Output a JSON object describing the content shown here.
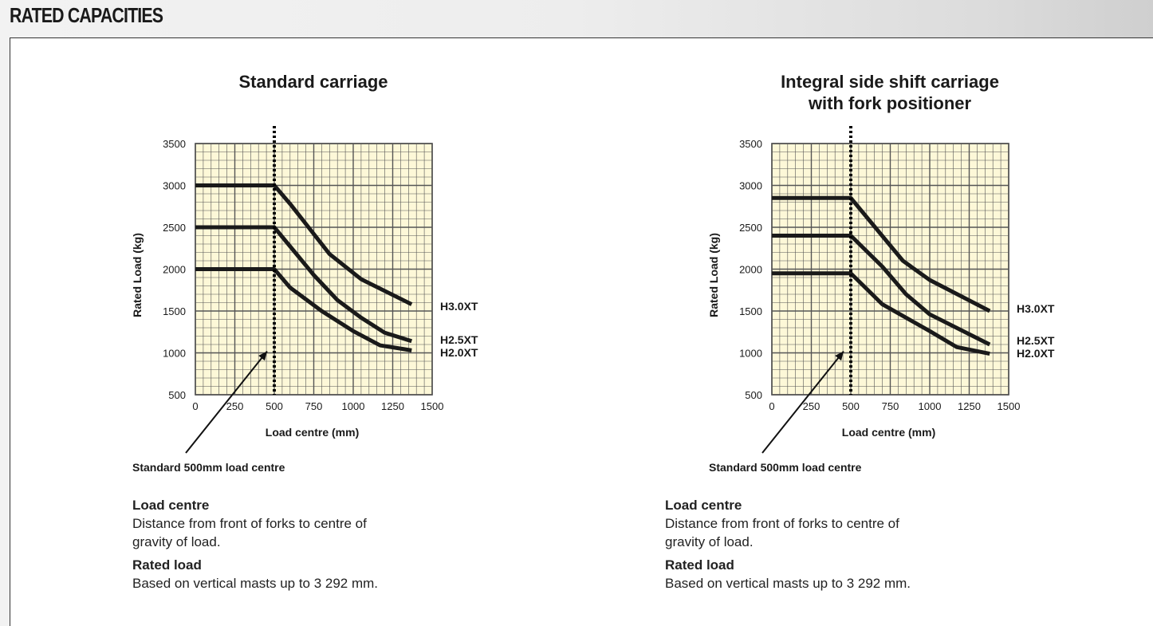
{
  "page_title": "RATED CAPACITIES",
  "chart_data": [
    {
      "type": "line",
      "title": [
        "Standard carriage"
      ],
      "xlabel": "Load centre (mm)",
      "ylabel": "Rated Load (kg)",
      "xlim": [
        0,
        1500
      ],
      "ylim": [
        500,
        3500
      ],
      "xticks": [
        0,
        250,
        500,
        750,
        1000,
        1250,
        1500
      ],
      "yticks": [
        500,
        1000,
        1500,
        2000,
        2500,
        3000,
        3500
      ],
      "grid": true,
      "reference_line": {
        "x": 500,
        "label": "Standard 500mm load centre"
      },
      "series": [
        {
          "name": "H3.0XT",
          "points": [
            [
              0,
              3000
            ],
            [
              500,
              3000
            ],
            [
              600,
              2780
            ],
            [
              850,
              2180
            ],
            [
              1050,
              1880
            ],
            [
              1370,
              1580
            ]
          ]
        },
        {
          "name": "H2.5XT",
          "points": [
            [
              0,
              2500
            ],
            [
              500,
              2500
            ],
            [
              750,
              1930
            ],
            [
              900,
              1630
            ],
            [
              1050,
              1420
            ],
            [
              1200,
              1240
            ],
            [
              1370,
              1140
            ]
          ]
        },
        {
          "name": "H2.0XT",
          "points": [
            [
              0,
              2000
            ],
            [
              500,
              2000
            ],
            [
              600,
              1780
            ],
            [
              800,
              1500
            ],
            [
              1000,
              1260
            ],
            [
              1170,
              1090
            ],
            [
              1370,
              1030
            ]
          ]
        }
      ]
    },
    {
      "type": "line",
      "title": [
        "Integral side shift carriage",
        "with fork positioner"
      ],
      "xlabel": "Load centre (mm)",
      "ylabel": "Rated Load (kg)",
      "xlim": [
        0,
        1500
      ],
      "ylim": [
        500,
        3500
      ],
      "xticks": [
        0,
        250,
        500,
        750,
        1000,
        1250,
        1500
      ],
      "yticks": [
        500,
        1000,
        1500,
        2000,
        2500,
        3000,
        3500
      ],
      "grid": true,
      "reference_line": {
        "x": 500,
        "label": "Standard 500mm load centre"
      },
      "series": [
        {
          "name": "H3.0XT",
          "points": [
            [
              0,
              2850
            ],
            [
              500,
              2850
            ],
            [
              830,
              2100
            ],
            [
              1000,
              1870
            ],
            [
              1380,
              1500
            ]
          ]
        },
        {
          "name": "H2.5XT",
          "points": [
            [
              0,
              2400
            ],
            [
              500,
              2400
            ],
            [
              700,
              2030
            ],
            [
              850,
              1700
            ],
            [
              1000,
              1460
            ],
            [
              1380,
              1100
            ]
          ]
        },
        {
          "name": "H2.0XT",
          "points": [
            [
              0,
              1950
            ],
            [
              500,
              1950
            ],
            [
              700,
              1580
            ],
            [
              1000,
              1260
            ],
            [
              1170,
              1070
            ],
            [
              1380,
              990
            ]
          ]
        }
      ]
    }
  ],
  "notes": [
    {
      "load_centre_heading": "Load centre",
      "load_centre_text": "Distance from front of forks to centre of gravity of load.",
      "rated_load_heading": "Rated load",
      "rated_load_text": "Based on vertical masts up to 3 292 mm."
    },
    {
      "load_centre_heading": "Load centre",
      "load_centre_text": "Distance from front of forks to centre of gravity of load.",
      "rated_load_heading": "Rated load",
      "rated_load_text": "Based on vertical masts up to 3 292 mm."
    }
  ],
  "colors": {
    "grid_bg": "#fdf8d8",
    "grid_line": "#555555",
    "curve": "#1a1a1a"
  }
}
